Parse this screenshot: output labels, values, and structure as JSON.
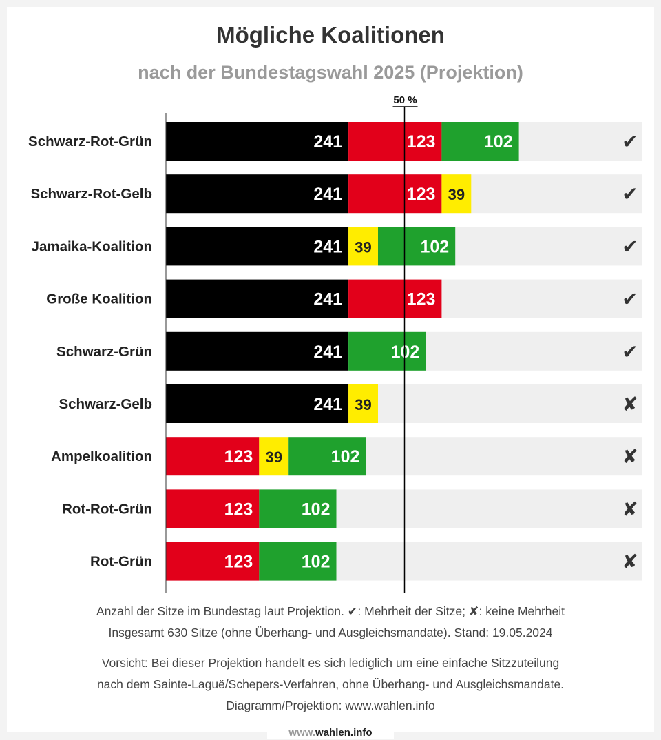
{
  "title": "Mögliche Koalitionen",
  "subtitle": "nach der Bundestagswahl 2025 (Projektion)",
  "colors": {
    "union": "#000000",
    "spd": "#e2001a",
    "gruene": "#1fa12d",
    "fdp": "#ffed00",
    "linke": "#1fa12d",
    "track": "#efefef",
    "majority_line": "#000000"
  },
  "chart_data": {
    "type": "bar",
    "stacked": true,
    "orientation": "horizontal",
    "total_seats": 630,
    "majority_label": "50 %",
    "majority_value": 315,
    "xlim": [
      0,
      630
    ],
    "categories": [
      "Schwarz-Rot-Grün",
      "Schwarz-Rot-Gelb",
      "Jamaika-Koalition",
      "Große Koalition",
      "Schwarz-Grün",
      "Schwarz-Gelb",
      "Ampelkoalition",
      "Rot-Rot-Grün",
      "Rot-Grün"
    ],
    "rows": [
      {
        "label": "Schwarz-Rot-Grün",
        "majority": true,
        "status": "✔",
        "segments": [
          {
            "party": "union",
            "value": 241
          },
          {
            "party": "spd",
            "value": 123
          },
          {
            "party": "gruene",
            "value": 102
          }
        ]
      },
      {
        "label": "Schwarz-Rot-Gelb",
        "majority": true,
        "status": "✔",
        "segments": [
          {
            "party": "union",
            "value": 241
          },
          {
            "party": "spd",
            "value": 123
          },
          {
            "party": "fdp",
            "value": 39
          }
        ]
      },
      {
        "label": "Jamaika-Koalition",
        "majority": true,
        "status": "✔",
        "segments": [
          {
            "party": "union",
            "value": 241
          },
          {
            "party": "fdp",
            "value": 39
          },
          {
            "party": "gruene",
            "value": 102
          }
        ]
      },
      {
        "label": "Große Koalition",
        "majority": true,
        "status": "✔",
        "segments": [
          {
            "party": "union",
            "value": 241
          },
          {
            "party": "spd",
            "value": 123
          }
        ]
      },
      {
        "label": "Schwarz-Grün",
        "majority": true,
        "status": "✔",
        "segments": [
          {
            "party": "union",
            "value": 241
          },
          {
            "party": "gruene",
            "value": 102
          }
        ]
      },
      {
        "label": "Schwarz-Gelb",
        "majority": false,
        "status": "✘",
        "segments": [
          {
            "party": "union",
            "value": 241
          },
          {
            "party": "fdp",
            "value": 39
          }
        ]
      },
      {
        "label": "Ampelkoalition",
        "majority": false,
        "status": "✘",
        "segments": [
          {
            "party": "spd",
            "value": 123
          },
          {
            "party": "fdp",
            "value": 39
          },
          {
            "party": "gruene",
            "value": 102
          }
        ]
      },
      {
        "label": "Rot-Rot-Grün",
        "majority": false,
        "status": "✘",
        "segments": [
          {
            "party": "spd",
            "value": 123
          },
          {
            "party": "linke",
            "value": 0
          },
          {
            "party": "gruene",
            "value": 102
          }
        ]
      },
      {
        "label": "Rot-Grün",
        "majority": false,
        "status": "✘",
        "segments": [
          {
            "party": "spd",
            "value": 123
          },
          {
            "party": "gruene",
            "value": 102
          }
        ]
      }
    ]
  },
  "footer": {
    "line1": "Anzahl der Sitze im Bundestag laut Projektion. ✔: Mehrheit der Sitze; ✘: keine Mehrheit",
    "line2": "Insgesamt 630 Sitze (ohne Überhang- und Ausgleichsmandate). Stand: 19.05.2024",
    "line3": "Vorsicht: Bei dieser Projektion handelt es sich lediglich um eine einfache Sitzzuteilung",
    "line4": "nach dem Sainte-Laguë/Schepers-Verfahren, ohne Überhang- und Ausgleichsmandate.",
    "line5": "Diagramm/Projektion: www.wahlen.info"
  },
  "watermark": {
    "prefix": "www.",
    "name": "wahlen",
    "suffix": ".info"
  }
}
